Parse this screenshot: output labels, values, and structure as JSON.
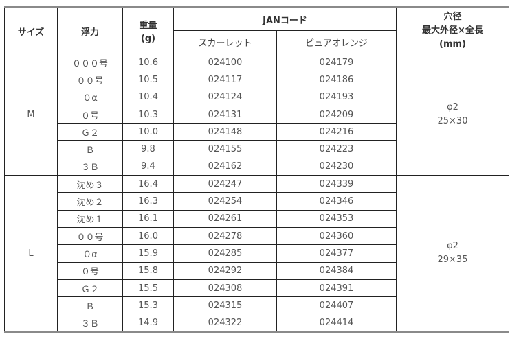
{
  "header": {
    "size": "サイズ",
    "buoyancy": "浮力",
    "weight": "重量",
    "weight_unit": "(g)",
    "jan": "JANコード",
    "scarlet": "スカーレット",
    "pure_orange": "ピュアオレンジ",
    "hole_line1": "穴径",
    "hole_line2": "最大外径×全長",
    "hole_line3": "(mm)"
  },
  "groups": [
    {
      "size": "M",
      "hole": "φ2",
      "dims": "25×30",
      "rows": [
        {
          "buoyancy": "０００号",
          "weight": "10.6",
          "scarlet": "024100",
          "orange": "024179"
        },
        {
          "buoyancy": "００号",
          "weight": "10.5",
          "scarlet": "024117",
          "orange": "024186"
        },
        {
          "buoyancy": "０α",
          "weight": "10.4",
          "scarlet": "024124",
          "orange": "024193"
        },
        {
          "buoyancy": "０号",
          "weight": "10.3",
          "scarlet": "024131",
          "orange": "024209"
        },
        {
          "buoyancy": "Ｇ２",
          "weight": "10.0",
          "scarlet": "024148",
          "orange": "024216"
        },
        {
          "buoyancy": "Ｂ",
          "weight": "9.8",
          "scarlet": "024155",
          "orange": "024223"
        },
        {
          "buoyancy": "３Ｂ",
          "weight": "9.4",
          "scarlet": "024162",
          "orange": "024230"
        }
      ]
    },
    {
      "size": "L",
      "hole": "φ2",
      "dims": "29×35",
      "rows": [
        {
          "buoyancy": "沈め３",
          "weight": "16.4",
          "scarlet": "024247",
          "orange": "024339"
        },
        {
          "buoyancy": "沈め２",
          "weight": "16.3",
          "scarlet": "024254",
          "orange": "024346"
        },
        {
          "buoyancy": "沈め１",
          "weight": "16.1",
          "scarlet": "024261",
          "orange": "024353"
        },
        {
          "buoyancy": "００号",
          "weight": "16.0",
          "scarlet": "024278",
          "orange": "024360"
        },
        {
          "buoyancy": "０α",
          "weight": "15.9",
          "scarlet": "024285",
          "orange": "024377"
        },
        {
          "buoyancy": "０号",
          "weight": "15.8",
          "scarlet": "024292",
          "orange": "024384"
        },
        {
          "buoyancy": "Ｇ２",
          "weight": "15.5",
          "scarlet": "024308",
          "orange": "024391"
        },
        {
          "buoyancy": "Ｂ",
          "weight": "15.3",
          "scarlet": "024315",
          "orange": "024407"
        },
        {
          "buoyancy": "３Ｂ",
          "weight": "14.9",
          "scarlet": "024322",
          "orange": "024414"
        }
      ]
    }
  ]
}
